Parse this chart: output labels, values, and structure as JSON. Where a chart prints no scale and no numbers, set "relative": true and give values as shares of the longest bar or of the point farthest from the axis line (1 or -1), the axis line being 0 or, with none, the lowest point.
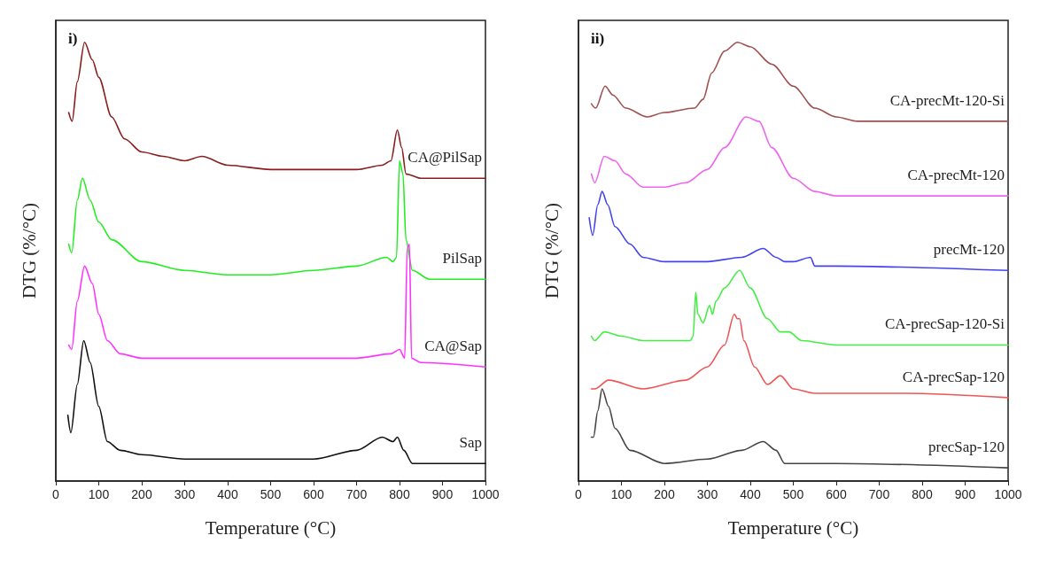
{
  "chart_data": [
    {
      "type": "line",
      "title": "i)",
      "xlabel": "Temperature (°C)",
      "ylabel": "DTG (%/°C)",
      "relative": true,
      "xlim": [
        0,
        1000
      ],
      "xticks": [
        0,
        100,
        200,
        300,
        400,
        500,
        600,
        700,
        800,
        900,
        1000
      ],
      "grid": false,
      "legend": false,
      "marker": "none",
      "line_style": "solid",
      "series": [
        {
          "name": "CA@PilSap",
          "color": "#8b1c1c",
          "x": [
            30,
            38,
            50,
            67,
            85,
            100,
            130,
            160,
            200,
            250,
            300,
            340,
            400,
            500,
            600,
            700,
            760,
            780,
            795,
            805,
            815,
            850,
            1000
          ],
          "values": [
            0.84,
            0.82,
            0.91,
            1.0,
            0.96,
            0.92,
            0.83,
            0.78,
            0.75,
            0.74,
            0.73,
            0.74,
            0.72,
            0.71,
            0.71,
            0.71,
            0.72,
            0.73,
            0.8,
            0.76,
            0.7,
            0.69,
            0.69
          ]
        },
        {
          "name": "PilSap",
          "color": "#22ee22",
          "x": [
            30,
            37,
            50,
            62,
            80,
            100,
            130,
            200,
            300,
            400,
            500,
            600,
            700,
            770,
            785,
            793,
            800,
            808,
            815,
            830,
            870,
            1000
          ],
          "values": [
            0.54,
            0.52,
            0.64,
            0.69,
            0.64,
            0.59,
            0.55,
            0.5,
            0.48,
            0.47,
            0.47,
            0.48,
            0.49,
            0.51,
            0.5,
            0.51,
            0.73,
            0.7,
            0.55,
            0.48,
            0.46,
            0.46
          ]
        },
        {
          "name": "CA@Sap",
          "color": "#ff33ff",
          "x": [
            30,
            37,
            50,
            67,
            85,
            100,
            120,
            150,
            200,
            400,
            600,
            700,
            780,
            800,
            812,
            818,
            823,
            828,
            850,
            1000
          ],
          "values": [
            0.31,
            0.3,
            0.41,
            0.49,
            0.45,
            0.38,
            0.32,
            0.29,
            0.28,
            0.28,
            0.28,
            0.28,
            0.29,
            0.3,
            0.28,
            0.53,
            0.54,
            0.28,
            0.27,
            0.26
          ]
        },
        {
          "name": "Sap",
          "color": "#111111",
          "x": [
            28,
            35,
            50,
            65,
            80,
            100,
            120,
            150,
            200,
            300,
            400,
            500,
            600,
            700,
            760,
            785,
            795,
            810,
            830,
            1000
          ],
          "values": [
            0.15,
            0.11,
            0.22,
            0.32,
            0.27,
            0.17,
            0.09,
            0.07,
            0.06,
            0.05,
            0.05,
            0.05,
            0.05,
            0.07,
            0.1,
            0.09,
            0.1,
            0.07,
            0.04,
            0.04
          ]
        }
      ]
    },
    {
      "type": "line",
      "title": "ii)",
      "xlabel": "Temperature (°C)",
      "ylabel": "DTG (%/°C)",
      "relative": true,
      "xlim": [
        0,
        1000
      ],
      "xticks": [
        0,
        100,
        200,
        300,
        400,
        500,
        600,
        700,
        800,
        900,
        1000
      ],
      "grid": false,
      "legend": false,
      "marker": "none",
      "line_style": "solid",
      "series": [
        {
          "name": "CA-precMt-120-Si",
          "color": "#a05050",
          "x": [
            30,
            40,
            62,
            80,
            110,
            160,
            200,
            270,
            290,
            310,
            340,
            370,
            400,
            450,
            500,
            550,
            600,
            650,
            1000
          ],
          "values": [
            0.86,
            0.85,
            0.9,
            0.88,
            0.85,
            0.83,
            0.84,
            0.85,
            0.87,
            0.93,
            0.98,
            1.0,
            0.99,
            0.95,
            0.9,
            0.85,
            0.83,
            0.82,
            0.82
          ]
        },
        {
          "name": "CA-precMt-120",
          "color": "#ee66ee",
          "x": [
            30,
            38,
            60,
            85,
            110,
            150,
            200,
            250,
            300,
            340,
            390,
            420,
            450,
            500,
            550,
            600,
            1000
          ],
          "values": [
            0.7,
            0.68,
            0.74,
            0.73,
            0.7,
            0.67,
            0.67,
            0.68,
            0.71,
            0.76,
            0.83,
            0.82,
            0.76,
            0.69,
            0.66,
            0.65,
            0.65
          ]
        },
        {
          "name": "precMt-120",
          "color": "#4444ee",
          "x": [
            25,
            33,
            45,
            55,
            68,
            85,
            120,
            150,
            200,
            300,
            380,
            430,
            460,
            480,
            500,
            540,
            550,
            600,
            1000
          ],
          "values": [
            0.6,
            0.56,
            0.63,
            0.66,
            0.63,
            0.58,
            0.54,
            0.51,
            0.5,
            0.5,
            0.51,
            0.53,
            0.51,
            0.5,
            0.5,
            0.51,
            0.49,
            0.49,
            0.48
          ]
        },
        {
          "name": "CA-precSap-120-Si",
          "color": "#44ee44",
          "x": [
            30,
            38,
            60,
            100,
            150,
            200,
            260,
            267,
            273,
            278,
            290,
            305,
            312,
            320,
            340,
            375,
            400,
            440,
            470,
            490,
            520,
            600,
            1000
          ],
          "values": [
            0.33,
            0.32,
            0.34,
            0.33,
            0.32,
            0.32,
            0.32,
            0.33,
            0.43,
            0.38,
            0.36,
            0.4,
            0.38,
            0.41,
            0.44,
            0.48,
            0.44,
            0.37,
            0.34,
            0.34,
            0.32,
            0.31,
            0.31
          ]
        },
        {
          "name": "CA-precSap-120",
          "color": "#ee5555",
          "x": [
            30,
            38,
            70,
            150,
            250,
            300,
            340,
            363,
            370,
            375,
            385,
            410,
            440,
            470,
            500,
            550,
            750,
            760,
            1000
          ],
          "values": [
            0.21,
            0.21,
            0.23,
            0.21,
            0.23,
            0.26,
            0.31,
            0.38,
            0.37,
            0.37,
            0.32,
            0.26,
            0.22,
            0.24,
            0.21,
            0.2,
            0.2,
            0.2,
            0.19
          ]
        },
        {
          "name": "precSap-120",
          "color": "#444444",
          "x": [
            30,
            35,
            45,
            55,
            70,
            85,
            120,
            200,
            300,
            380,
            430,
            460,
            480,
            550,
            600,
            1000
          ],
          "values": [
            0.1,
            0.1,
            0.16,
            0.21,
            0.17,
            0.12,
            0.07,
            0.04,
            0.05,
            0.07,
            0.09,
            0.07,
            0.04,
            0.04,
            0.04,
            0.03
          ]
        }
      ]
    }
  ]
}
